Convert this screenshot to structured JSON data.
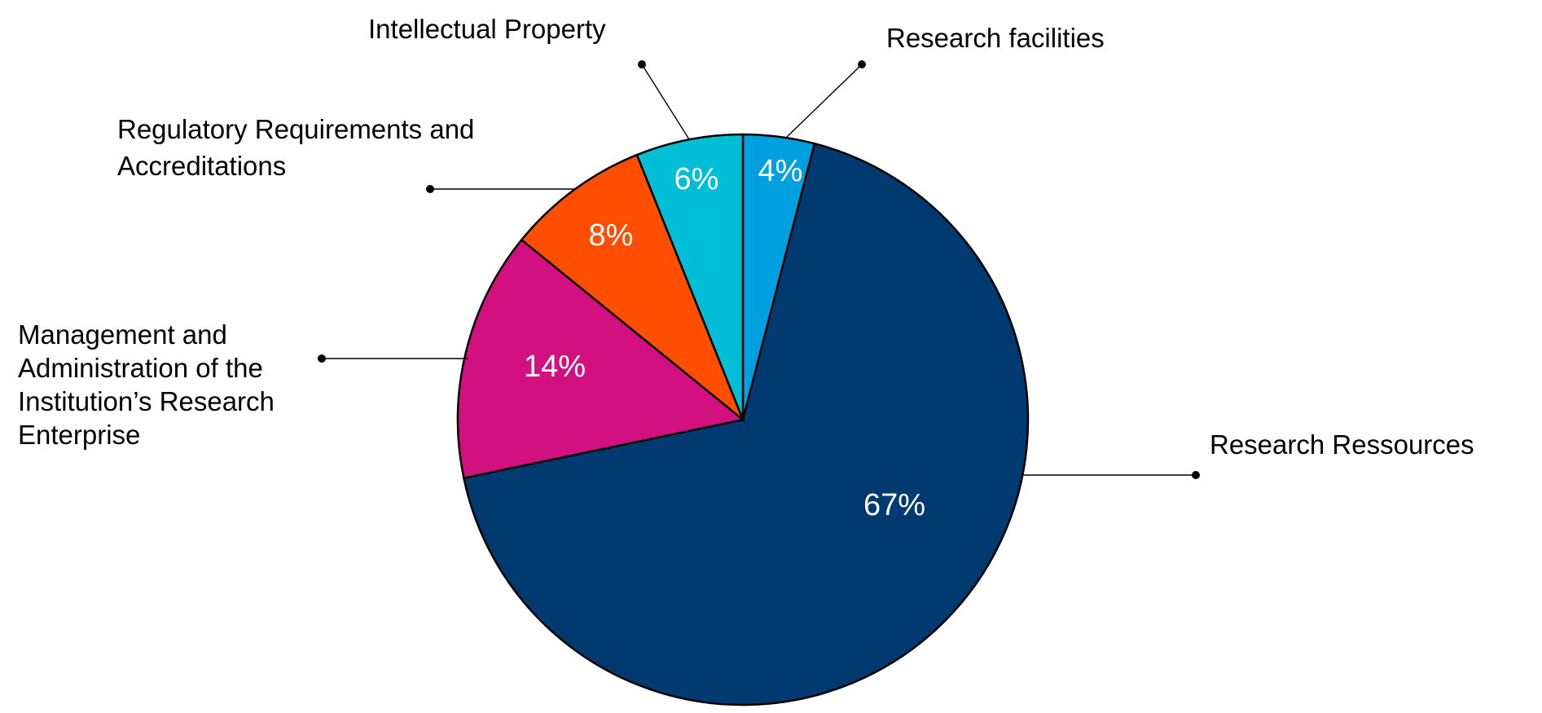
{
  "chart_data": {
    "type": "pie",
    "slices": [
      {
        "label": "Research facilities",
        "value": 4,
        "value_label": "4%",
        "color": "#009fe0"
      },
      {
        "label": "Research Ressources",
        "value": 67,
        "value_label": "67%",
        "color": "#003a70"
      },
      {
        "label": "Management and Administration of the Institution’s Research Enterprise",
        "value": 14,
        "value_label": "14%",
        "color": "#d3107f"
      },
      {
        "label": "Regulatory Requirements and Accreditations",
        "value": 8,
        "value_label": "8%",
        "color": "#ff4e00"
      },
      {
        "label": "Intellectual Property",
        "value": 6,
        "value_label": "6%",
        "color": "#00bed6"
      }
    ],
    "start": "12 o'clock",
    "direction": "clockwise",
    "legend": "none"
  }
}
